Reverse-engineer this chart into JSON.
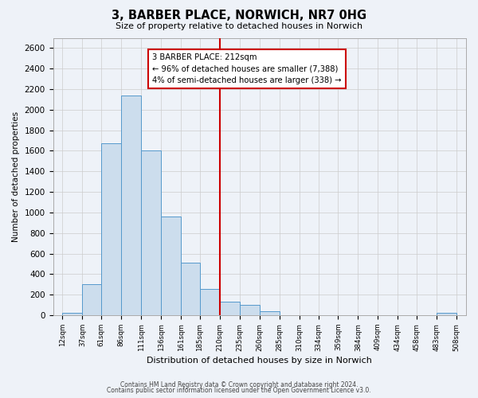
{
  "title": "3, BARBER PLACE, NORWICH, NR7 0HG",
  "subtitle": "Size of property relative to detached houses in Norwich",
  "xlabel": "Distribution of detached houses by size in Norwich",
  "ylabel": "Number of detached properties",
  "bin_edges": [
    12,
    37,
    61,
    86,
    111,
    136,
    161,
    185,
    210,
    235,
    260,
    285,
    310,
    334,
    359,
    384,
    409,
    434,
    458,
    483,
    508
  ],
  "bar_heights": [
    20,
    300,
    1670,
    2140,
    1600,
    960,
    510,
    255,
    130,
    100,
    40,
    0,
    0,
    0,
    0,
    0,
    0,
    0,
    0,
    20
  ],
  "bar_color": "#ccdded",
  "bar_edgecolor": "#5599cc",
  "vline_x": 210,
  "vline_color": "#cc0000",
  "annotation_line1": "3 BARBER PLACE: 212sqm",
  "annotation_line2": "← 96% of detached houses are smaller (7,388)",
  "annotation_line3": "4% of semi-detached houses are larger (338) →",
  "annotation_box_color": "#ffffff",
  "annotation_box_edgecolor": "#cc0000",
  "ylim": [
    0,
    2700
  ],
  "yticks": [
    0,
    200,
    400,
    600,
    800,
    1000,
    1200,
    1400,
    1600,
    1800,
    2000,
    2200,
    2400,
    2600
  ],
  "xtick_labels": [
    "12sqm",
    "37sqm",
    "61sqm",
    "86sqm",
    "111sqm",
    "136sqm",
    "161sqm",
    "185sqm",
    "210sqm",
    "235sqm",
    "260sqm",
    "285sqm",
    "310sqm",
    "334sqm",
    "359sqm",
    "384sqm",
    "409sqm",
    "434sqm",
    "458sqm",
    "483sqm",
    "508sqm"
  ],
  "grid_color": "#cccccc",
  "bg_color": "#eef2f8",
  "footer_line1": "Contains HM Land Registry data © Crown copyright and database right 2024.",
  "footer_line2": "Contains public sector information licensed under the Open Government Licence v3.0."
}
